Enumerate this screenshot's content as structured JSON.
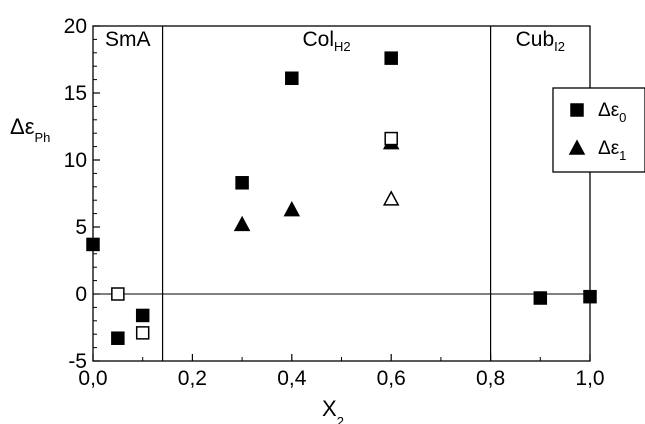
{
  "chart_data": {
    "type": "scatter",
    "xlabel": {
      "main": "X",
      "sub": "2"
    },
    "ylabel": {
      "main": "Δε",
      "sub": "Ph"
    },
    "xlim": [
      0.0,
      1.0
    ],
    "ylim": [
      -5,
      20
    ],
    "xticks": [
      0.0,
      0.2,
      0.4,
      0.6,
      0.8,
      1.0
    ],
    "xtick_labels": [
      "0,0",
      "0,2",
      "0,4",
      "0,6",
      "0,8",
      "1,0"
    ],
    "yticks": [
      -5,
      0,
      5,
      10,
      15,
      20
    ],
    "ytick_labels": [
      "-5",
      "0",
      "5",
      "10",
      "15",
      "20"
    ],
    "grid": false,
    "legend_position": "right",
    "zero_line": 0,
    "phase_boundaries": [
      0.14,
      0.8
    ],
    "regions": [
      {
        "x": 0.07,
        "main": "SmA",
        "sub": ""
      },
      {
        "x": 0.47,
        "main": "Col",
        "sub": "H2"
      },
      {
        "x": 0.9,
        "main": "Cub",
        "sub": "I2"
      }
    ],
    "series": [
      {
        "name": "Δε0",
        "name_main": "Δε",
        "name_sub": "0",
        "marker": "square",
        "filled": true,
        "points": [
          [
            0.0,
            3.7
          ],
          [
            0.05,
            -3.3
          ],
          [
            0.1,
            -1.6
          ],
          [
            0.3,
            8.3
          ],
          [
            0.4,
            16.1
          ],
          [
            0.6,
            17.6
          ],
          [
            0.9,
            -0.3
          ],
          [
            1.0,
            -0.2
          ]
        ]
      },
      {
        "name": "Δε1",
        "name_main": "Δε",
        "name_sub": "1",
        "marker": "triangle",
        "filled": true,
        "points": [
          [
            0.3,
            5.2
          ],
          [
            0.4,
            6.3
          ],
          [
            0.6,
            11.3
          ]
        ]
      },
      {
        "marker": "square",
        "filled": false,
        "points": [
          [
            0.05,
            0.0
          ],
          [
            0.1,
            -2.9
          ],
          [
            0.6,
            11.6
          ]
        ]
      },
      {
        "marker": "triangle",
        "filled": false,
        "points": [
          [
            0.6,
            7.1
          ]
        ]
      }
    ]
  }
}
